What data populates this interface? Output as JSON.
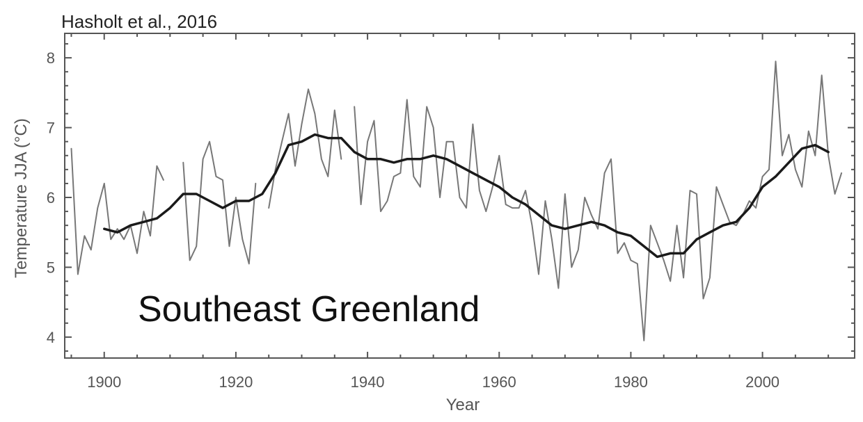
{
  "source_label": "Hasholt et al., 2016",
  "chart_data": {
    "type": "line",
    "xlabel": "Year",
    "ylabel": "Temperature JJA (°C)",
    "annotation": "Southeast Greenland",
    "xlim": [
      1894,
      2014
    ],
    "ylim": [
      3.7,
      8.35
    ],
    "x_ticks": [
      1900,
      1920,
      1940,
      1960,
      1980,
      2000
    ],
    "y_ticks": [
      4,
      5,
      6,
      7,
      8
    ],
    "grid": false,
    "colors": {
      "annual": "#777777",
      "smoothed": "#1a1a1a",
      "axis": "#555555"
    },
    "series": [
      {
        "key": "annual",
        "x": [
          1895,
          1896,
          1897,
          1898,
          1899,
          1900,
          1901,
          1902,
          1903,
          1904,
          1905,
          1906,
          1907,
          1908,
          1909,
          1910,
          1912,
          1913,
          1914,
          1915,
          1916,
          1917,
          1918,
          1919,
          1920,
          1921,
          1922,
          1923,
          1924,
          1925,
          1926,
          1927,
          1928,
          1929,
          1930,
          1931,
          1932,
          1933,
          1934,
          1935,
          1936,
          1937,
          1938,
          1939,
          1940,
          1941,
          1942,
          1943,
          1944,
          1945,
          1946,
          1947,
          1948,
          1949,
          1950,
          1951,
          1952,
          1953,
          1954,
          1955,
          1956,
          1957,
          1958,
          1959,
          1960,
          1961,
          1962,
          1963,
          1964,
          1965,
          1966,
          1967,
          1968,
          1969,
          1970,
          1971,
          1972,
          1973,
          1974,
          1975,
          1976,
          1977,
          1978,
          1979,
          1980,
          1981,
          1982,
          1983,
          1984,
          1985,
          1986,
          1987,
          1988,
          1989,
          1990,
          1991,
          1992,
          1993,
          1994,
          1995,
          1996,
          1997,
          1998,
          1999,
          2000,
          2001,
          2002,
          2003,
          2004,
          2005,
          2006,
          2007,
          2008,
          2009,
          2010,
          2011,
          2012,
          2013
        ],
        "values": [
          6.7,
          4.9,
          5.45,
          5.25,
          5.85,
          6.2,
          5.4,
          5.55,
          5.4,
          5.6,
          5.2,
          5.8,
          5.45,
          6.45,
          6.25,
          null,
          6.5,
          5.1,
          5.3,
          6.55,
          6.8,
          6.3,
          6.25,
          5.3,
          6.0,
          5.4,
          5.05,
          6.2,
          null,
          5.85,
          6.4,
          6.8,
          7.2,
          6.45,
          7.05,
          7.55,
          7.2,
          6.55,
          6.3,
          7.25,
          6.55,
          null,
          7.3,
          5.9,
          6.8,
          7.1,
          5.8,
          5.95,
          6.3,
          6.35,
          7.4,
          6.3,
          6.15,
          7.3,
          7.0,
          6.0,
          6.8,
          6.8,
          6.0,
          5.85,
          7.05,
          6.1,
          5.8,
          6.15,
          6.6,
          5.9,
          5.85,
          5.85,
          6.1,
          5.6,
          4.9,
          5.95,
          5.4,
          4.7,
          6.05,
          5.0,
          5.25,
          6.0,
          5.75,
          5.55,
          6.35,
          6.55,
          5.2,
          5.35,
          5.1,
          5.05,
          3.95,
          5.6,
          5.35,
          5.1,
          4.8,
          5.6,
          4.85,
          6.1,
          6.05,
          4.55,
          4.85,
          6.15,
          5.9,
          5.65,
          5.6,
          5.75,
          5.95,
          5.85,
          6.3,
          6.4,
          7.95,
          6.6,
          6.9,
          6.4,
          6.15,
          6.95,
          6.6,
          7.75,
          6.6,
          6.05,
          6.35,
          null
        ]
      },
      {
        "key": "smoothed",
        "x": [
          1900,
          1902,
          1904,
          1906,
          1908,
          1910,
          1912,
          1914,
          1916,
          1918,
          1920,
          1922,
          1924,
          1926,
          1928,
          1930,
          1932,
          1934,
          1936,
          1938,
          1940,
          1942,
          1944,
          1946,
          1948,
          1950,
          1952,
          1954,
          1956,
          1958,
          1960,
          1962,
          1964,
          1966,
          1968,
          1970,
          1972,
          1974,
          1976,
          1978,
          1980,
          1982,
          1984,
          1986,
          1988,
          1990,
          1992,
          1994,
          1996,
          1998,
          2000,
          2002,
          2004,
          2006,
          2008,
          2010
        ],
        "values": [
          5.55,
          5.5,
          5.6,
          5.65,
          5.7,
          5.85,
          6.05,
          6.05,
          5.95,
          5.85,
          5.95,
          5.95,
          6.05,
          6.35,
          6.75,
          6.8,
          6.9,
          6.85,
          6.85,
          6.65,
          6.55,
          6.55,
          6.5,
          6.55,
          6.55,
          6.6,
          6.55,
          6.45,
          6.35,
          6.25,
          6.15,
          6.0,
          5.9,
          5.75,
          5.6,
          5.55,
          5.6,
          5.65,
          5.6,
          5.5,
          5.45,
          5.3,
          5.15,
          5.2,
          5.2,
          5.4,
          5.5,
          5.6,
          5.65,
          5.85,
          6.15,
          6.3,
          6.5,
          6.7,
          6.75,
          6.65
        ]
      }
    ]
  }
}
